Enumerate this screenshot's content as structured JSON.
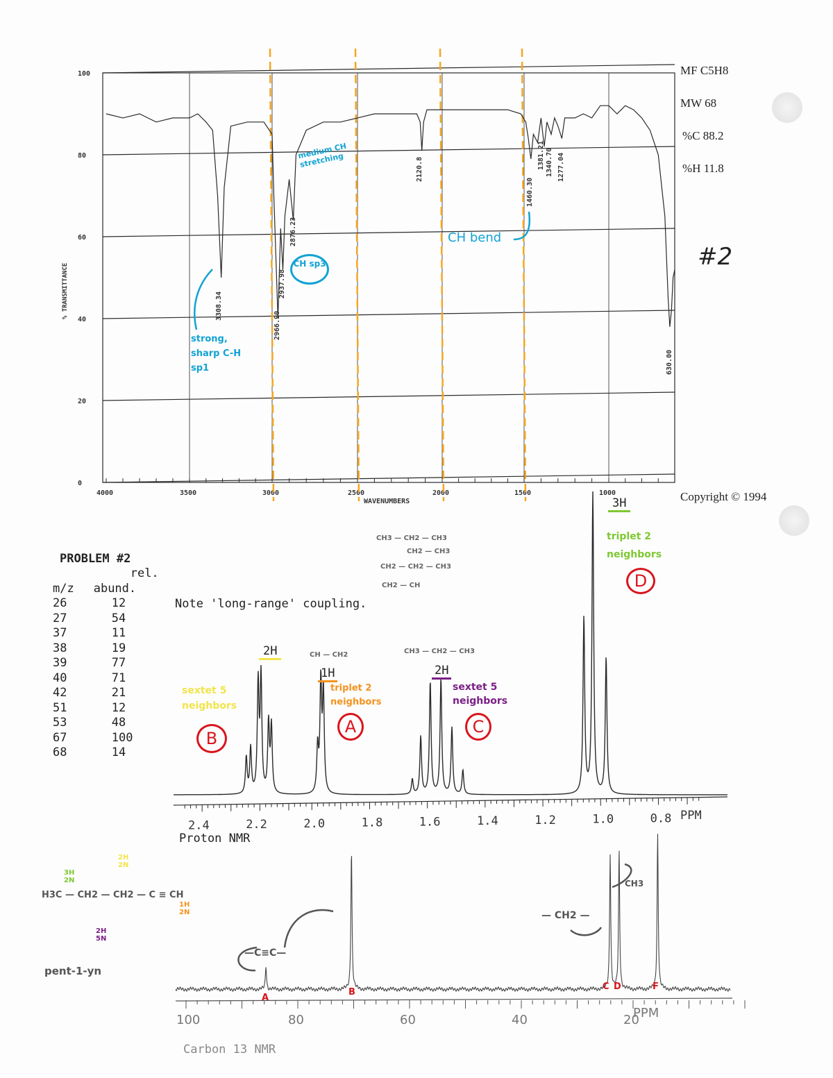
{
  "colors": {
    "ink": "#2a2a2a",
    "guide": "#f5a623",
    "blue": "#12a3d4",
    "green": "#7ec832",
    "yellow": "#f2e44a",
    "orange": "#f5921e",
    "purple": "#7a1f86",
    "red": "#d9141b"
  },
  "info": {
    "mf": "MF C5H8",
    "mw": "MW 68",
    "pc": "%C 88.2",
    "ph": "%H 11.8",
    "copyright": "Copyright © 1994",
    "problem_tag": "#2"
  },
  "mass_spec": {
    "title": "PROBLEM #2",
    "col1": "m/z",
    "col2a": "rel.",
    "col2b": "abund.",
    "rows": [
      [
        "26",
        "12"
      ],
      [
        "27",
        "54"
      ],
      [
        "37",
        "11"
      ],
      [
        "38",
        "19"
      ],
      [
        "39",
        "77"
      ],
      [
        "40",
        "71"
      ],
      [
        "42",
        "21"
      ],
      [
        "51",
        "12"
      ],
      [
        "53",
        "48"
      ],
      [
        "67",
        "100"
      ],
      [
        "68",
        "14"
      ]
    ]
  },
  "notes": {
    "long_range": "Note 'long-range' coupling.",
    "proton_label": "Proton NMR",
    "carbon_label": "Carbon 13 NMR",
    "name": "pent-1-yn"
  },
  "annotations": {
    "ir_sp1": "strong, sharp C-H sp1",
    "ir_sp3": "CH sp3",
    "ir_medium": "medium CH stretching",
    "ir_bend": "CH bend",
    "frag1": "CH3 — CH2 — CH3",
    "frag2": "CH2 — CH3",
    "frag3": "CH2 — CH2 — CH3",
    "frag4": "CH2 — CH",
    "frag5": "CH — CH2",
    "frag6": "CH3 — CH2 — CH3",
    "h_b": "2H",
    "h_a": "1H",
    "h_c": "2H",
    "h_d": "3H",
    "b_mult": "sextet 5 neighbors",
    "a_mult": "triplet 2 neighbors",
    "c_mult": "sextet 5 neighbors",
    "d_mult": "triplet 2 neighbors",
    "lbl_a": "A",
    "lbl_b": "B",
    "lbl_c": "C",
    "lbl_d": "D",
    "c13_alkyne": "—C≡C—",
    "c13_ch2": "— CH2 —",
    "c13_ch3": "CH3",
    "c13_A": "A",
    "c13_B": "B",
    "c13_C": "C",
    "c13_D": "D",
    "c13_F": "F",
    "struct_main": "H3C — CH2 — CH2 — C ≡ CH",
    "struct_ch3": "3H 2N",
    "struct_ch2a": "2H 5N",
    "struct_ch2b": "2H 2N",
    "struct_ch": "1H 2N"
  },
  "chart_data": [
    {
      "type": "line",
      "title": "",
      "xlabel": "WAVENUMBERS",
      "ylabel": "% TRANSMITTANCE",
      "xlim": [
        4000,
        600
      ],
      "ylim": [
        0,
        100
      ],
      "grid": true,
      "xticks": [
        "4000",
        "3500",
        "3000",
        "2500",
        "2000",
        "1500",
        "1000"
      ],
      "yticks": [
        "0",
        "20",
        "40",
        "60",
        "80",
        "100"
      ],
      "x": [
        4000,
        3900,
        3800,
        3700,
        3600,
        3500,
        3450,
        3400,
        3360,
        3330,
        3308,
        3290,
        3250,
        3150,
        3050,
        3000,
        2990,
        2966,
        2950,
        2937,
        2925,
        2900,
        2876,
        2860,
        2800,
        2700,
        2600,
        2500,
        2400,
        2300,
        2200,
        2150,
        2130,
        2120,
        2110,
        2090,
        2000,
        1800,
        1600,
        1520,
        1490,
        1475,
        1460,
        1445,
        1420,
        1400,
        1381,
        1365,
        1340,
        1320,
        1300,
        1277,
        1260,
        1200,
        1150,
        1100,
        1050,
        1000,
        950,
        900,
        850,
        800,
        750,
        700,
        660,
        640,
        630,
        620,
        610,
        600
      ],
      "y": [
        90,
        89,
        90,
        88,
        89,
        89,
        90,
        88,
        86,
        70,
        50,
        72,
        87,
        88,
        88,
        85,
        70,
        40,
        62,
        52,
        65,
        74,
        64,
        80,
        86,
        88,
        88,
        89,
        90,
        90,
        90,
        90,
        88,
        81,
        88,
        91,
        91,
        91,
        91,
        90,
        88,
        84,
        79,
        85,
        83,
        89,
        82,
        88,
        85,
        89,
        87,
        84,
        89,
        89,
        90,
        89,
        92,
        92,
        90,
        92,
        91,
        89,
        86,
        80,
        65,
        45,
        38,
        42,
        50,
        52
      ],
      "peak_labels": [
        "3308.34",
        "2966.90",
        "2937.98",
        "2876.23",
        "2120.8",
        "1460.30",
        "1381.21",
        "1340.70",
        "1277.04",
        "630.00"
      ],
      "guides": [
        3000,
        2500,
        2000,
        1500
      ]
    },
    {
      "type": "line",
      "title": "",
      "xlabel": "PPM",
      "ylabel": "",
      "xlim": [
        2.45,
        0.65
      ],
      "ylim": [
        0,
        100
      ],
      "xticks": [
        "2.4",
        "2.2",
        "2.0",
        "1.8",
        "1.6",
        "1.4",
        "1.2",
        "1.0",
        "0.8"
      ],
      "peaks": [
        [
          2.237,
          12
        ],
        [
          2.222,
          15
        ],
        [
          2.196,
          36
        ],
        [
          2.186,
          38
        ],
        [
          2.16,
          23
        ],
        [
          2.15,
          22
        ],
        [
          1.99,
          15
        ],
        [
          1.979,
          36
        ],
        [
          1.97,
          33
        ],
        [
          1.662,
          5
        ],
        [
          1.633,
          19
        ],
        [
          1.6,
          37
        ],
        [
          1.563,
          38
        ],
        [
          1.525,
          22
        ],
        [
          1.487,
          8
        ],
        [
          1.068,
          58
        ],
        [
          1.037,
          100
        ],
        [
          0.991,
          45
        ]
      ]
    },
    {
      "type": "line",
      "title": "",
      "xlabel": "PPM",
      "ylabel": "",
      "xlim": [
        100,
        0
      ],
      "ylim": [
        0,
        100
      ],
      "xticks": [
        "100",
        "80",
        "60",
        "40",
        "20"
      ],
      "peaks": [
        [
          85.7,
          15
        ],
        [
          70.4,
          90
        ],
        [
          24.1,
          87
        ],
        [
          22.5,
          89
        ],
        [
          15.6,
          100
        ]
      ]
    }
  ]
}
